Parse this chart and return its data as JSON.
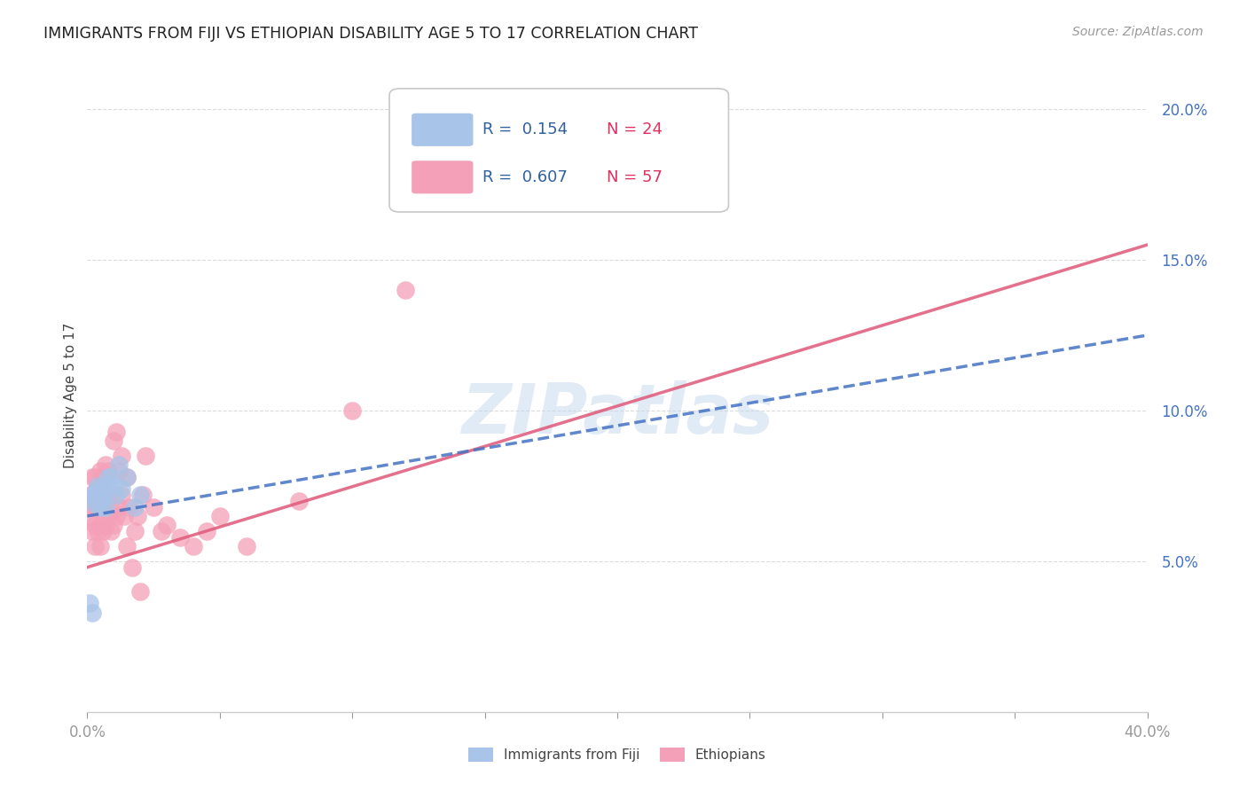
{
  "title": "IMMIGRANTS FROM FIJI VS ETHIOPIAN DISABILITY AGE 5 TO 17 CORRELATION CHART",
  "source": "Source: ZipAtlas.com",
  "ylabel": "Disability Age 5 to 17",
  "watermark": "ZIPatlas",
  "xlim": [
    0.0,
    0.4
  ],
  "ylim": [
    0.0,
    0.21
  ],
  "yticks": [
    0.05,
    0.1,
    0.15,
    0.2
  ],
  "ytick_labels": [
    "5.0%",
    "10.0%",
    "15.0%",
    "20.0%"
  ],
  "xticks": [
    0.0,
    0.05,
    0.1,
    0.15,
    0.2,
    0.25,
    0.3,
    0.35,
    0.4
  ],
  "xtick_labels": [
    "0.0%",
    "",
    "",
    "",
    "",
    "",
    "",
    "",
    "40.0%"
  ],
  "fiji_R": 0.154,
  "fiji_N": 24,
  "ethiopian_R": 0.607,
  "ethiopian_N": 57,
  "fiji_color": "#a8c4e8",
  "ethiopian_color": "#f4a0b8",
  "fiji_line_color": "#4472c4",
  "ethiopian_line_color": "#e06080",
  "grid_color": "#d8d8d8",
  "background_color": "#ffffff",
  "fiji_x": [
    0.001,
    0.002,
    0.002,
    0.003,
    0.003,
    0.003,
    0.004,
    0.004,
    0.005,
    0.005,
    0.005,
    0.006,
    0.006,
    0.007,
    0.007,
    0.008,
    0.009,
    0.01,
    0.011,
    0.012,
    0.013,
    0.015,
    0.018,
    0.02
  ],
  "fiji_y": [
    0.036,
    0.033,
    0.071,
    0.072,
    0.069,
    0.073,
    0.072,
    0.075,
    0.068,
    0.07,
    0.074,
    0.071,
    0.073,
    0.075,
    0.068,
    0.078,
    0.078,
    0.075,
    0.072,
    0.082,
    0.074,
    0.078,
    0.068,
    0.072
  ],
  "ethiopian_x": [
    0.001,
    0.001,
    0.002,
    0.002,
    0.002,
    0.003,
    0.003,
    0.003,
    0.003,
    0.004,
    0.004,
    0.004,
    0.005,
    0.005,
    0.005,
    0.005,
    0.005,
    0.006,
    0.006,
    0.006,
    0.007,
    0.007,
    0.007,
    0.008,
    0.008,
    0.008,
    0.009,
    0.009,
    0.01,
    0.01,
    0.011,
    0.011,
    0.012,
    0.012,
    0.013,
    0.013,
    0.014,
    0.015,
    0.015,
    0.016,
    0.017,
    0.018,
    0.019,
    0.02,
    0.021,
    0.022,
    0.025,
    0.028,
    0.03,
    0.035,
    0.04,
    0.045,
    0.05,
    0.06,
    0.08,
    0.1,
    0.12
  ],
  "ethiopian_y": [
    0.065,
    0.072,
    0.06,
    0.068,
    0.078,
    0.055,
    0.062,
    0.07,
    0.078,
    0.06,
    0.068,
    0.075,
    0.055,
    0.062,
    0.068,
    0.074,
    0.08,
    0.06,
    0.072,
    0.078,
    0.062,
    0.07,
    0.082,
    0.065,
    0.072,
    0.08,
    0.06,
    0.068,
    0.062,
    0.09,
    0.065,
    0.093,
    0.068,
    0.08,
    0.072,
    0.085,
    0.065,
    0.055,
    0.078,
    0.068,
    0.048,
    0.06,
    0.065,
    0.04,
    0.072,
    0.085,
    0.068,
    0.06,
    0.062,
    0.058,
    0.055,
    0.06,
    0.065,
    0.055,
    0.07,
    0.1,
    0.14
  ],
  "legend_fiji_label": "Immigrants from Fiji",
  "legend_ethiopian_label": "Ethiopians",
  "fiji_trendline_x": [
    0.0,
    0.4
  ],
  "fiji_trendline_y": [
    0.065,
    0.125
  ],
  "ethiopian_trendline_x": [
    0.0,
    0.4
  ],
  "ethiopian_trendline_y": [
    0.048,
    0.155
  ]
}
